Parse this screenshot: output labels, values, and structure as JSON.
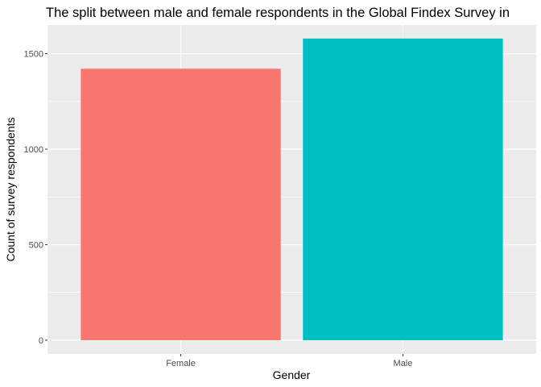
{
  "chart_data": {
    "type": "bar",
    "title": "The split between male and female respondents in the Global Findex Survey in",
    "xlabel": "Gender",
    "ylabel": "Count of survey respondents",
    "categories": [
      "Female",
      "Male"
    ],
    "values": [
      1421,
      1579
    ],
    "colors": [
      "#F8766D",
      "#00BFC4"
    ],
    "ylim": [
      -72,
      1650
    ],
    "yticks": [
      0,
      500,
      1000,
      1500
    ],
    "grid": true,
    "legend": "none",
    "panel_background": "#EBEBEB",
    "gridline_color": "#FFFFFF"
  }
}
